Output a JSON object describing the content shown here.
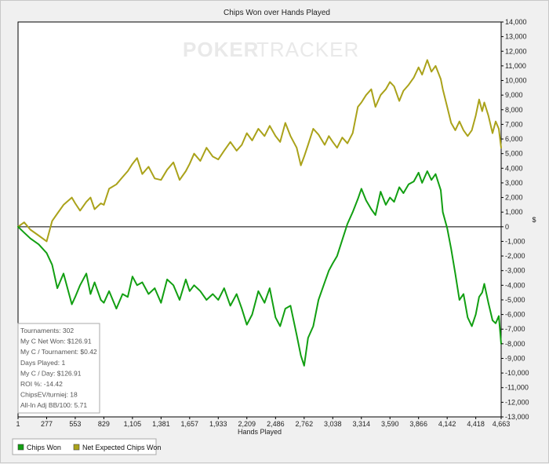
{
  "watermark": {
    "part1": "POKER",
    "part2": "TRACKER"
  },
  "stats": [
    "Tournaments: 302",
    "My C Net Won: $126.91",
    "My C / Tournament: $0.42",
    "Days Played: 1",
    "My C / Day: $126.91",
    "ROI %: -14.42",
    "ChipsEV/turniej: 18",
    "All-In Adj BB/100: 5.71"
  ],
  "chart_data": {
    "type": "line",
    "title": "Chips Won over Hands Played",
    "xlabel": "Hands Played",
    "ylabel": "",
    "right_axis_symbol": "$",
    "xlim": [
      1,
      4663
    ],
    "ylim": [
      -13000,
      14000
    ],
    "xticks": [
      1,
      277,
      553,
      829,
      1105,
      1381,
      1657,
      1933,
      2209,
      2486,
      2762,
      3038,
      3314,
      3590,
      3866,
      4142,
      4418,
      4663
    ],
    "xtick_labels": [
      "1",
      "277",
      "553",
      "829",
      "1,105",
      "1,381",
      "1,657",
      "1,933",
      "2,209",
      "2,486",
      "2,762",
      "3,038",
      "3,314",
      "3,590",
      "3,866",
      "4,142",
      "4,418",
      "4,663"
    ],
    "yticks": [
      14000,
      13000,
      12000,
      11000,
      10000,
      9000,
      8000,
      7000,
      6000,
      5000,
      4000,
      3000,
      2000,
      1000,
      0,
      -1000,
      -2000,
      -3000,
      -4000,
      -5000,
      -6000,
      -7000,
      -8000,
      -9000,
      -10000,
      -11000,
      -12000,
      -13000
    ],
    "ytick_labels": [
      "14,000",
      "13,000",
      "12,000",
      "11,000",
      "10,000",
      "9,000",
      "8,000",
      "7,000",
      "6,000",
      "5,000",
      "4,000",
      "3,000",
      "2,000",
      "1,000",
      "0",
      "-1,000",
      "-2,000",
      "-3,000",
      "-4,000",
      "-5,000",
      "-6,000",
      "-7,000",
      "-8,000",
      "-9,000",
      "-10,000",
      "-11,000",
      "-12,000",
      "-13,000"
    ],
    "grid": false,
    "legend_position": "bottom-left",
    "series": [
      {
        "name": "Chips Won",
        "color": "#129f12",
        "x": [
          1,
          60,
          120,
          200,
          277,
          330,
          380,
          440,
          520,
          553,
          600,
          660,
          700,
          740,
          800,
          829,
          880,
          950,
          1010,
          1060,
          1105,
          1150,
          1200,
          1260,
          1320,
          1381,
          1440,
          1500,
          1560,
          1620,
          1657,
          1700,
          1760,
          1820,
          1880,
          1933,
          1990,
          2050,
          2110,
          2160,
          2209,
          2260,
          2320,
          2380,
          2430,
          2486,
          2530,
          2580,
          2630,
          2690,
          2730,
          2762,
          2800,
          2850,
          2900,
          2960,
          3000,
          3038,
          3080,
          3130,
          3180,
          3230,
          3280,
          3314,
          3360,
          3410,
          3450,
          3500,
          3550,
          3590,
          3630,
          3680,
          3720,
          3770,
          3820,
          3866,
          3900,
          3950,
          3990,
          4030,
          4080,
          4100,
          4142,
          4180,
          4220,
          4260,
          4300,
          4340,
          4380,
          4418,
          4450,
          4480,
          4500,
          4540,
          4580,
          4610,
          4640,
          4663
        ],
        "y": [
          0,
          -400,
          -800,
          -1200,
          -1800,
          -2600,
          -4200,
          -3200,
          -5300,
          -4800,
          -4000,
          -3200,
          -4600,
          -3800,
          -5000,
          -5200,
          -4400,
          -5600,
          -4600,
          -4800,
          -3400,
          -4000,
          -3800,
          -4600,
          -4200,
          -5200,
          -3600,
          -4000,
          -5000,
          -3600,
          -4400,
          -4000,
          -4400,
          -5000,
          -4600,
          -5000,
          -4200,
          -5400,
          -4600,
          -5600,
          -6700,
          -6000,
          -4400,
          -5200,
          -4200,
          -6200,
          -6800,
          -5600,
          -5400,
          -7400,
          -8800,
          -9500,
          -7600,
          -6800,
          -5000,
          -3800,
          -3000,
          -2500,
          -2000,
          -900,
          200,
          1000,
          1900,
          2600,
          1800,
          1200,
          800,
          2400,
          1500,
          2000,
          1700,
          2700,
          2300,
          2900,
          3100,
          3700,
          3000,
          3800,
          3200,
          3600,
          2500,
          1000,
          -100,
          -1500,
          -3200,
          -5000,
          -4600,
          -6200,
          -6800,
          -6000,
          -4800,
          -4500,
          -3900,
          -5200,
          -6400,
          -6600,
          -6100,
          -8000
        ]
      },
      {
        "name": "Net Expected Chips Won",
        "color": "#aaa21a",
        "x": [
          1,
          60,
          120,
          200,
          277,
          330,
          380,
          440,
          520,
          553,
          600,
          660,
          700,
          740,
          800,
          829,
          880,
          950,
          1010,
          1060,
          1105,
          1150,
          1200,
          1260,
          1320,
          1381,
          1440,
          1500,
          1560,
          1620,
          1657,
          1700,
          1760,
          1820,
          1880,
          1933,
          1990,
          2050,
          2110,
          2160,
          2209,
          2260,
          2320,
          2380,
          2430,
          2486,
          2530,
          2580,
          2630,
          2690,
          2730,
          2762,
          2800,
          2850,
          2900,
          2960,
          3000,
          3038,
          3080,
          3130,
          3180,
          3230,
          3280,
          3314,
          3360,
          3410,
          3450,
          3500,
          3550,
          3590,
          3630,
          3680,
          3720,
          3770,
          3820,
          3866,
          3900,
          3950,
          3990,
          4030,
          4080,
          4100,
          4142,
          4180,
          4220,
          4260,
          4300,
          4340,
          4380,
          4418,
          4450,
          4480,
          4500,
          4540,
          4580,
          4610,
          4640,
          4663
        ],
        "y": [
          0,
          300,
          -200,
          -600,
          -1000,
          400,
          900,
          1500,
          2000,
          1600,
          1100,
          1700,
          2000,
          1200,
          1600,
          1500,
          2600,
          2900,
          3400,
          3800,
          4300,
          4700,
          3600,
          4100,
          3300,
          3200,
          3900,
          4400,
          3200,
          3800,
          4300,
          5000,
          4500,
          5400,
          4800,
          4600,
          5200,
          5800,
          5200,
          5600,
          6400,
          5900,
          6700,
          6200,
          6900,
          6200,
          5800,
          7100,
          6200,
          5400,
          4200,
          4800,
          5600,
          6700,
          6300,
          5600,
          6200,
          5800,
          5400,
          6100,
          5700,
          6400,
          8200,
          8500,
          9000,
          9400,
          8200,
          9000,
          9400,
          9900,
          9600,
          8600,
          9300,
          9700,
          10200,
          10900,
          10400,
          11400,
          10600,
          11000,
          10100,
          9400,
          8200,
          7100,
          6600,
          7200,
          6600,
          6200,
          6600,
          7600,
          8700,
          7900,
          8500,
          7600,
          6400,
          7200,
          6700,
          5400
        ]
      }
    ]
  }
}
